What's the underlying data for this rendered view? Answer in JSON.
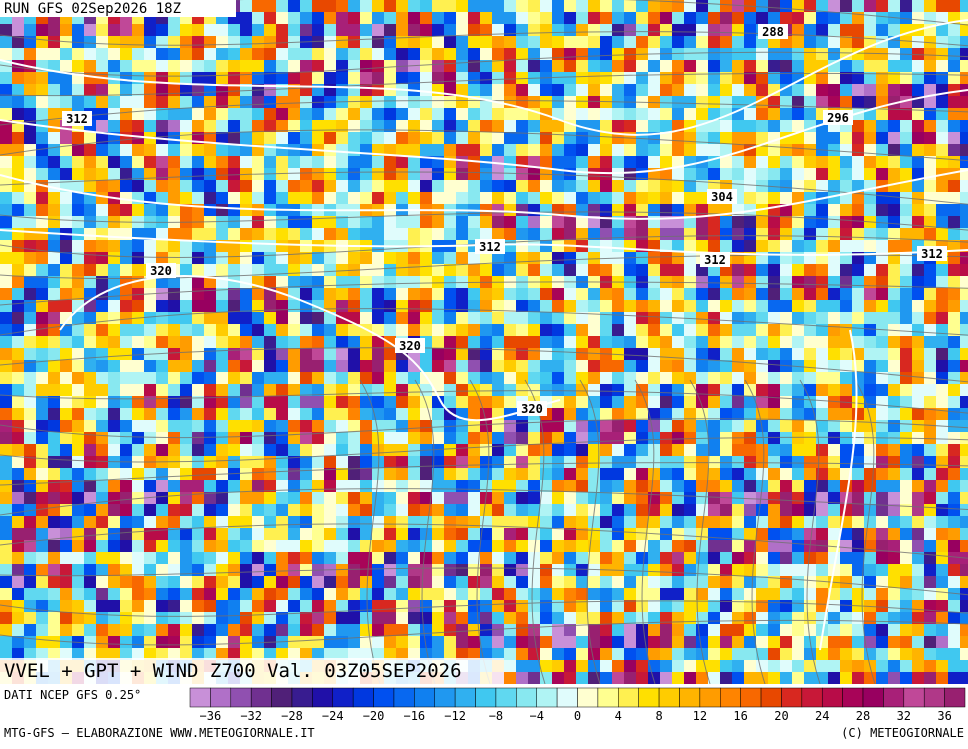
{
  "header": {
    "run": "RUN GFS 02Sep2026 18Z"
  },
  "map": {
    "title": "VVEL + GPT + WIND Z700 Val. 03Z05SEP2026",
    "contour_labels": [
      "288",
      "296",
      "304",
      "312",
      "312",
      "312",
      "312",
      "320",
      "320",
      "320"
    ]
  },
  "colorbar": {
    "source": "DATI NCEP GFS 0.25°",
    "colors": [
      "#c890d8",
      "#b070c8",
      "#9050b0",
      "#703090",
      "#502078",
      "#381c90",
      "#2010a8",
      "#1020c8",
      "#0038e0",
      "#0050f0",
      "#0868f0",
      "#1080f0",
      "#2098f0",
      "#30b0f0",
      "#40c8f0",
      "#60d8f0",
      "#88e8f0",
      "#b0f4f4",
      "#e0fcfc",
      "#ffffd0",
      "#ffff90",
      "#fff050",
      "#ffe000",
      "#ffcc00",
      "#ffb400",
      "#ff9c00",
      "#ff8400",
      "#f86800",
      "#e84800",
      "#d82820",
      "#c81838",
      "#b80c48",
      "#a80458",
      "#980060",
      "#a82078",
      "#c04898",
      "#b03888",
      "#982070"
    ],
    "labels": [
      "−36",
      "−32",
      "−28",
      "−24",
      "−20",
      "−16",
      "−12",
      "−8",
      "−4",
      "0",
      "4",
      "8",
      "12",
      "16",
      "20",
      "24",
      "28",
      "32",
      "36"
    ]
  },
  "footer": {
    "left": "MTG-GFS – ELABORAZIONE WWW.METEOGIORNALE.IT",
    "right": "(C) METEOGIORNALE"
  }
}
